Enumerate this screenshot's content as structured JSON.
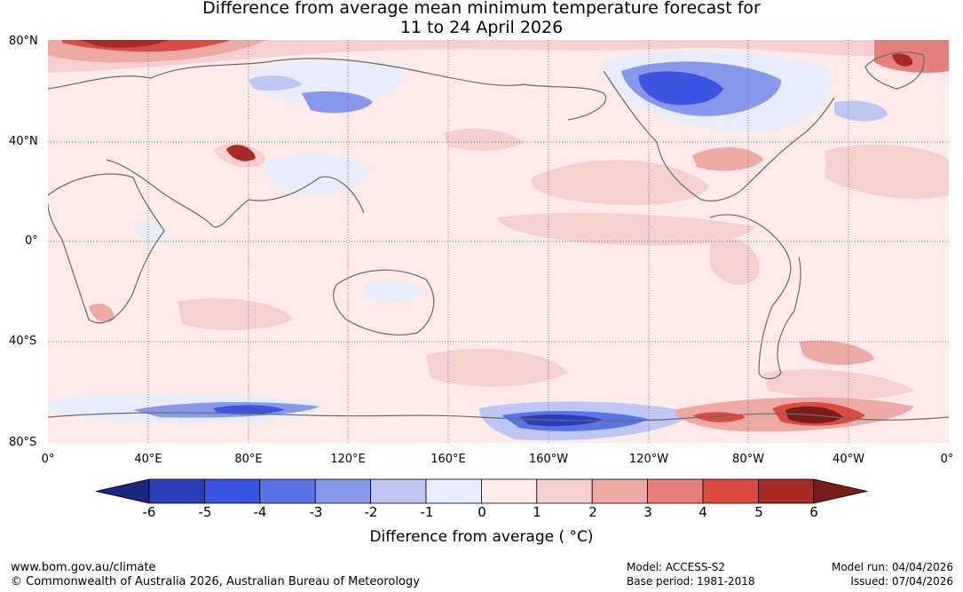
{
  "title": {
    "line1": "Difference from average mean minimum temperature forecast for",
    "line2": "11 to 24 April 2026"
  },
  "map": {
    "lat_labels": [
      "80°N",
      "40°N",
      "0°",
      "40°S",
      "80°S"
    ],
    "lon_labels": [
      "0°",
      "40°E",
      "80°E",
      "120°E",
      "160°E",
      "160°W",
      "120°W",
      "80°W",
      "40°W",
      "0°"
    ]
  },
  "colorbar": {
    "colors": [
      "#1c2580",
      "#2a3eb8",
      "#3a55e2",
      "#5a73e6",
      "#8797ea",
      "#bec7f3",
      "#e8ecfb",
      "#fdeae9",
      "#f5d0cf",
      "#eda9a6",
      "#e57f79",
      "#dc4a40",
      "#a82a24",
      "#7a1c1a"
    ],
    "ticks": [
      "-6",
      "-5",
      "-4",
      "-3",
      "-2",
      "-1",
      "0",
      "1",
      "2",
      "3",
      "4",
      "5",
      "6"
    ],
    "label": "Difference from average ( °C)"
  },
  "footer": {
    "website": "www.bom.gov.au/climate",
    "copyright": "© Commonwealth of Australia 2026, Australian Bureau of Meteorology",
    "model": "Model: ACCESS-S2",
    "base_period": "Base period: 1981-2018",
    "model_run": "Model run: 04/04/2026",
    "issued": "Issued: 07/04/2026"
  }
}
